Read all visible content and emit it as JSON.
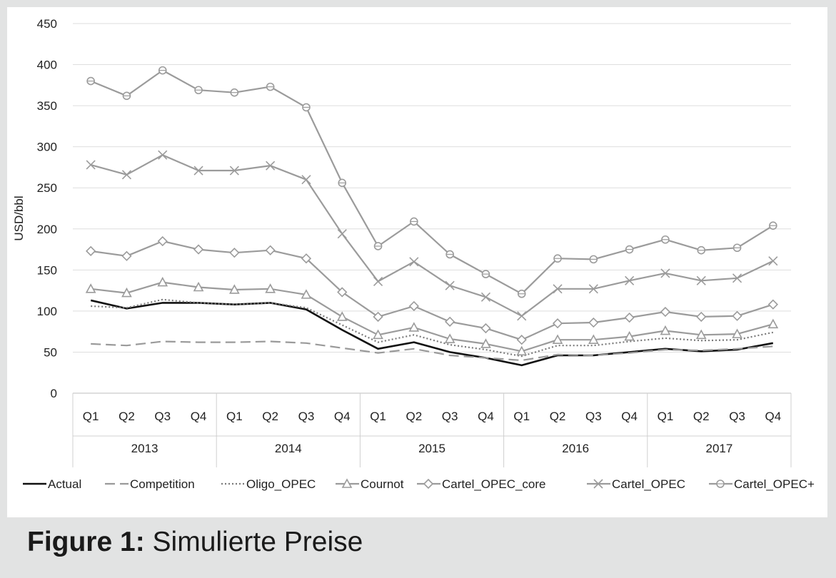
{
  "caption": {
    "label": "Figure 1:",
    "text": "Simulierte Preise"
  },
  "chart_data": {
    "type": "line",
    "title": "",
    "xlabel": "",
    "ylabel": "USD/bbl",
    "ylim": [
      0,
      450
    ],
    "yticks": [
      0,
      50,
      100,
      150,
      200,
      250,
      300,
      350,
      400,
      450
    ],
    "grid": "horizontal",
    "legend_position": "bottom",
    "categories": [
      "Q1",
      "Q2",
      "Q3",
      "Q4",
      "Q1",
      "Q2",
      "Q3",
      "Q4",
      "Q1",
      "Q2",
      "Q3",
      "Q4",
      "Q1",
      "Q2",
      "Q3",
      "Q4",
      "Q1",
      "Q2",
      "Q3",
      "Q4"
    ],
    "groups": [
      {
        "label": "2013",
        "start": 0,
        "count": 4
      },
      {
        "label": "2014",
        "start": 4,
        "count": 4
      },
      {
        "label": "2015",
        "start": 8,
        "count": 4
      },
      {
        "label": "2016",
        "start": 12,
        "count": 4
      },
      {
        "label": "2017",
        "start": 16,
        "count": 4
      }
    ],
    "series": [
      {
        "name": "Actual",
        "color": "#111111",
        "dash": "solid",
        "marker": "none",
        "values": [
          113,
          103,
          110,
          110,
          108,
          110,
          102,
          77,
          54,
          62,
          50,
          43,
          34,
          46,
          46,
          50,
          54,
          51,
          53,
          61
        ]
      },
      {
        "name": "Competition",
        "color": "#9a9a9a",
        "dash": "dashed",
        "marker": "none",
        "values": [
          60,
          58,
          63,
          62,
          62,
          63,
          61,
          55,
          49,
          54,
          46,
          43,
          40,
          47,
          46,
          49,
          53,
          52,
          54,
          57
        ]
      },
      {
        "name": "Oligo_OPEC",
        "color": "#7a7a7a",
        "dash": "dotted",
        "marker": "none",
        "values": [
          106,
          104,
          114,
          110,
          108,
          110,
          104,
          83,
          62,
          71,
          59,
          53,
          45,
          58,
          58,
          63,
          67,
          64,
          65,
          74
        ]
      },
      {
        "name": "Cournot",
        "color": "#9b9b9b",
        "dash": "solid",
        "marker": "triangle",
        "values": [
          127,
          122,
          135,
          129,
          126,
          127,
          120,
          93,
          71,
          80,
          66,
          60,
          51,
          65,
          65,
          69,
          76,
          71,
          72,
          84
        ]
      },
      {
        "name": "Cartel_OPEC_core",
        "color": "#9b9b9b",
        "dash": "solid",
        "marker": "diamond",
        "values": [
          173,
          167,
          185,
          175,
          171,
          174,
          164,
          123,
          93,
          106,
          87,
          79,
          65,
          85,
          86,
          92,
          99,
          93,
          94,
          108
        ]
      },
      {
        "name": "Cartel_OPEC",
        "color": "#9b9b9b",
        "dash": "solid",
        "marker": "x",
        "values": [
          278,
          266,
          290,
          271,
          271,
          277,
          260,
          194,
          136,
          160,
          131,
          117,
          94,
          127,
          127,
          137,
          146,
          137,
          140,
          161
        ]
      },
      {
        "name": "Cartel_OPEC+",
        "color": "#9b9b9b",
        "dash": "solid",
        "marker": "circle",
        "values": [
          380,
          362,
          393,
          369,
          366,
          373,
          348,
          256,
          179,
          209,
          169,
          145,
          121,
          164,
          163,
          175,
          187,
          174,
          177,
          204
        ]
      }
    ]
  }
}
